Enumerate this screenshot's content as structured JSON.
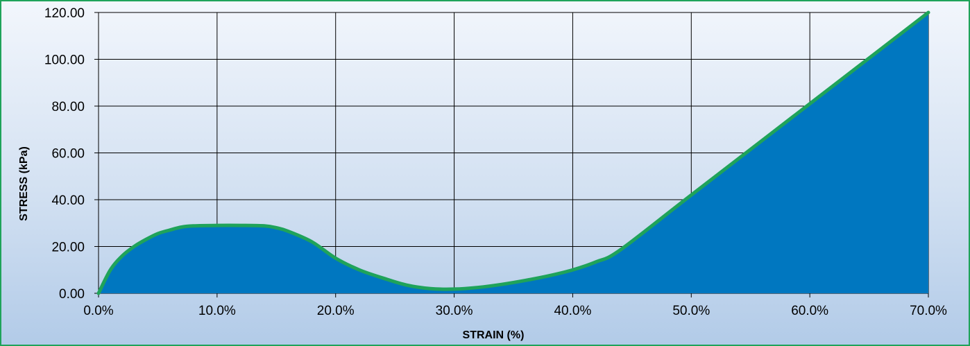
{
  "chart_data": {
    "type": "area",
    "title": "",
    "xlabel": "STRAIN (%)",
    "ylabel": "STRESS (kPa)",
    "xlim": [
      0,
      70
    ],
    "ylim": [
      0,
      120
    ],
    "grid": true,
    "x_tick_values": [
      0,
      10,
      20,
      30,
      40,
      50,
      60,
      70
    ],
    "x_tick_labels": [
      "0.0%",
      "10.0%",
      "20.0%",
      "30.0%",
      "40.0%",
      "50.0%",
      "60.0%",
      "70.0%"
    ],
    "y_tick_values": [
      0,
      20,
      40,
      60,
      80,
      100,
      120
    ],
    "y_tick_labels": [
      "0.00",
      "20.00",
      "40.00",
      "60.00",
      "80.00",
      "100.00",
      "120.00"
    ],
    "x": [
      0,
      1,
      2,
      3,
      4,
      5,
      6,
      7,
      8,
      10,
      12,
      14,
      15,
      16,
      18,
      20,
      22,
      24,
      26,
      28,
      30,
      32,
      34,
      36,
      38,
      40,
      42,
      44,
      50,
      60,
      70
    ],
    "y": [
      0,
      10,
      16,
      20,
      23,
      25.5,
      27,
      28.3,
      28.8,
      29,
      29,
      28.8,
      28,
      26.5,
      22,
      15,
      10,
      6.5,
      3.5,
      2,
      1.8,
      2.5,
      3.8,
      5.5,
      7.5,
      10,
      13.5,
      18.5,
      42,
      81,
      120
    ],
    "colors": {
      "fill": "#0077c0",
      "line": "#1fa35a",
      "grid": "#000000",
      "background_top": "#f2f6fc",
      "background_bottom": "#b2cbe8"
    }
  }
}
